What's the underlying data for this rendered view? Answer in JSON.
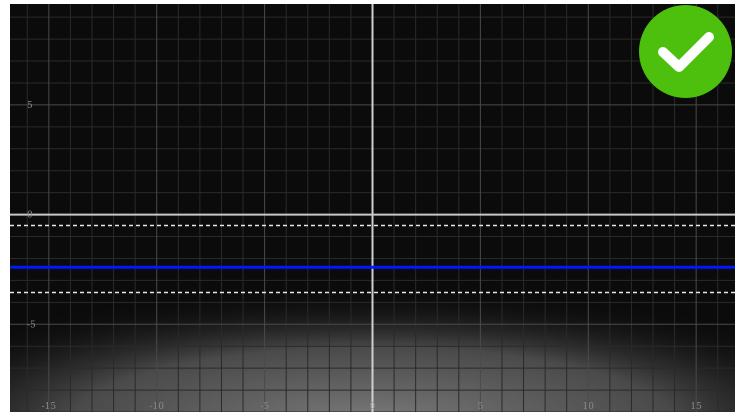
{
  "chart_data": {
    "type": "line",
    "title": "",
    "xlabel": "",
    "ylabel": "",
    "xlim": [
      -16.8,
      16.8
    ],
    "ylim": [
      -9,
      9.6
    ],
    "grid": true,
    "x_ticks": [
      -15,
      -10,
      -5,
      0,
      5,
      10,
      15
    ],
    "y_ticks": [
      5,
      0,
      -5
    ],
    "x_tick_labels": [
      "-15",
      "-10",
      "-5",
      "0",
      "5",
      "10",
      "15"
    ],
    "y_tick_labels": [
      "5",
      "0",
      "-5"
    ],
    "series": [
      {
        "style": "solid",
        "color": "#c8c8c8",
        "y": 0
      },
      {
        "style": "solid",
        "color": "#0018ff",
        "y": -2.4
      },
      {
        "style": "dashed",
        "color": "#e6e6e6",
        "y": -0.5
      },
      {
        "style": "dashed",
        "color": "#e6e6e6",
        "y": -3.55
      }
    ]
  },
  "status": {
    "icon": "checkmark-icon",
    "color": "#4cc00c",
    "state": "correct"
  }
}
